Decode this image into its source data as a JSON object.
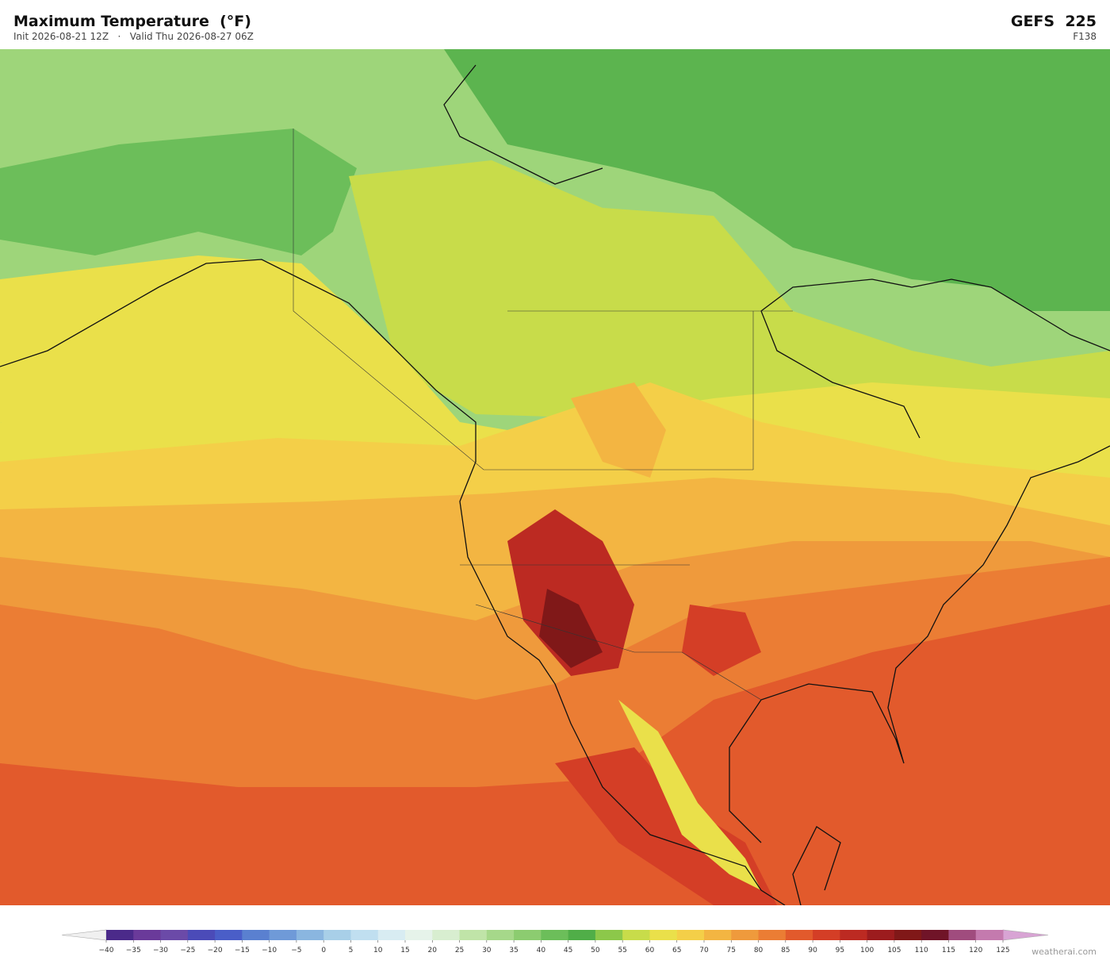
{
  "header": {
    "title": "Maximum Temperature  (°F)",
    "subtitle": "Init 2026-08-21 12Z   ·   Valid Thu 2026-08-27 06Z",
    "model": "GEFS  225",
    "forecast_hour": "F138"
  },
  "colorbar": {
    "ticks": [
      "−40",
      "−35",
      "−30",
      "−25",
      "−20",
      "−15",
      "−10",
      "−5",
      "0",
      "5",
      "10",
      "15",
      "20",
      "25",
      "30",
      "35",
      "40",
      "45",
      "50",
      "55",
      "60",
      "65",
      "70",
      "75",
      "80",
      "85",
      "90",
      "95",
      "100",
      "105",
      "110",
      "115",
      "120",
      "125"
    ],
    "colors": [
      "#4b2a8a",
      "#6a3a9a",
      "#6b4aa8",
      "#4b4bb8",
      "#4a5ec8",
      "#5a80d0",
      "#6f9ad8",
      "#8ab6e0",
      "#a8cfe8",
      "#c0dff0",
      "#d8ecf2",
      "#e6f3ea",
      "#d8eed0",
      "#c0e4a8",
      "#a6d88a",
      "#8ccc70",
      "#6cbe5a",
      "#50ae48",
      "#8cc84a",
      "#c8dc4a",
      "#eae04a",
      "#f4cf48",
      "#f3b542",
      "#ef9a3c",
      "#eb7d34",
      "#e25a2c",
      "#d43e26",
      "#bc2a22",
      "#9c1c1e",
      "#801818",
      "#701428",
      "#a04c7e",
      "#c47aae"
    ],
    "under_color": "#f0f0f0",
    "over_color": "#d8a4d4"
  },
  "footer": {
    "credit": "weatherai.com"
  }
}
